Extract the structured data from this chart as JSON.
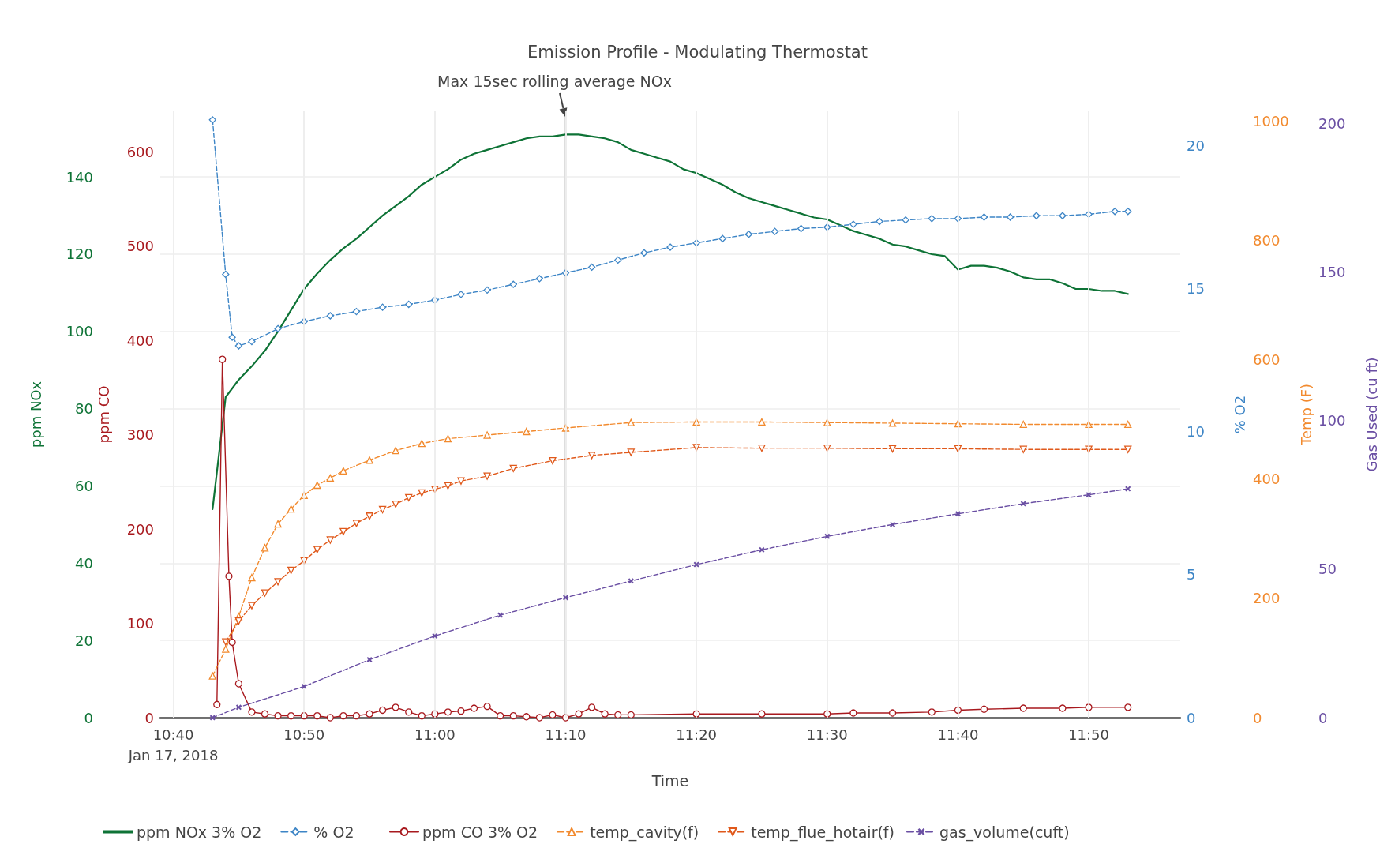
{
  "chart_data": [
    {
      "type": "line",
      "title": "Emission Profile - Modulating Thermostat",
      "xlabel": "Time",
      "ylabel": "ppm NOx",
      "y2label": "% O2",
      "xlim": [
        "2018-01-17T10:39",
        "2018-01-17T11:57"
      ],
      "xticks": [
        {
          "value": "2018-01-17T10:40",
          "label": "10:40\nJan 17, 2018"
        },
        {
          "value": "2018-01-17T10:50",
          "label": "10:50"
        },
        {
          "value": "2018-01-17T11:00",
          "label": "11:00"
        },
        {
          "value": "2018-01-17T11:10",
          "label": "11:10"
        },
        {
          "value": "2018-01-17T11:20",
          "label": "11:20"
        },
        {
          "value": "2018-01-17T11:30",
          "label": "11:30"
        },
        {
          "value": "2018-01-17T11:40",
          "label": "11:40"
        },
        {
          "value": "2018-01-17T11:50",
          "label": "11:50"
        }
      ],
      "ylim": [
        0,
        157
      ],
      "yticks": [
        0,
        20,
        40,
        60,
        80,
        100,
        120,
        140
      ],
      "y2lim": [
        0,
        21.2
      ],
      "y2ticks": [
        0,
        5,
        10,
        15,
        20
      ],
      "grid": true,
      "legend": "bottom",
      "ref_lines": [
        {
          "axis": "x",
          "value": "2018-01-17T11:10",
          "label": null,
          "color": "#dddddd"
        }
      ],
      "annotations": [
        {
          "text": "Max 15sec rolling average NOx",
          "x": "2018-01-17T11:10",
          "y": 151
        }
      ],
      "series": [
        {
          "name": "ppm NOx 3% O2",
          "color": "#0e7336",
          "marker": "none",
          "line_style": "solid",
          "x": [
            "2018-01-17T10:43",
            "2018-01-17T10:44",
            "2018-01-17T10:45",
            "2018-01-17T10:46",
            "2018-01-17T10:47",
            "2018-01-17T10:48",
            "2018-01-17T10:49",
            "2018-01-17T10:50",
            "2018-01-17T10:51",
            "2018-01-17T10:52",
            "2018-01-17T10:53",
            "2018-01-17T10:54",
            "2018-01-17T10:55",
            "2018-01-17T10:56",
            "2018-01-17T10:57",
            "2018-01-17T10:58",
            "2018-01-17T10:59",
            "2018-01-17T11:00",
            "2018-01-17T11:01",
            "2018-01-17T11:02",
            "2018-01-17T11:03",
            "2018-01-17T11:04",
            "2018-01-17T11:05",
            "2018-01-17T11:06",
            "2018-01-17T11:07",
            "2018-01-17T11:08",
            "2018-01-17T11:09",
            "2018-01-17T11:10",
            "2018-01-17T11:11",
            "2018-01-17T11:12",
            "2018-01-17T11:13",
            "2018-01-17T11:14",
            "2018-01-17T11:15",
            "2018-01-17T11:16",
            "2018-01-17T11:17",
            "2018-01-17T11:18",
            "2018-01-17T11:19",
            "2018-01-17T11:20",
            "2018-01-17T11:21",
            "2018-01-17T11:22",
            "2018-01-17T11:23",
            "2018-01-17T11:24",
            "2018-01-17T11:25",
            "2018-01-17T11:26",
            "2018-01-17T11:27",
            "2018-01-17T11:28",
            "2018-01-17T11:29",
            "2018-01-17T11:30",
            "2018-01-17T11:31",
            "2018-01-17T11:32",
            "2018-01-17T11:33",
            "2018-01-17T11:34",
            "2018-01-17T11:35",
            "2018-01-17T11:36",
            "2018-01-17T11:37",
            "2018-01-17T11:38",
            "2018-01-17T11:39",
            "2018-01-17T11:40",
            "2018-01-17T11:41",
            "2018-01-17T11:42",
            "2018-01-17T11:43",
            "2018-01-17T11:44",
            "2018-01-17T11:45",
            "2018-01-17T11:46",
            "2018-01-17T11:47",
            "2018-01-17T11:48",
            "2018-01-17T11:49",
            "2018-01-17T11:50",
            "2018-01-17T11:51",
            "2018-01-17T11:52",
            "2018-01-17T11:53"
          ],
          "values": [
            54,
            83,
            87.5,
            91,
            95,
            100,
            105.5,
            111,
            115,
            118.5,
            121.5,
            124,
            127,
            130,
            132.5,
            135,
            138,
            140,
            142,
            144.5,
            146,
            147,
            148,
            149,
            150,
            150.5,
            150.5,
            151,
            151,
            150.5,
            150,
            149,
            147,
            146,
            145,
            144,
            142,
            141,
            139.5,
            138,
            136,
            134.5,
            133.5,
            132.5,
            131.5,
            130.5,
            129.5,
            129,
            127.5,
            126,
            125,
            124,
            122.5,
            122,
            121,
            120,
            119.5,
            116,
            117,
            117,
            116.5,
            115.5,
            114,
            113.5,
            113.5,
            112.5,
            111,
            111,
            110.5,
            110.5,
            109.7
          ]
        },
        {
          "name": "% O2",
          "color": "#3d85c6",
          "axis": "y2",
          "marker": "diamond",
          "line_style": "dashed",
          "x": [
            "2018-01-17T10:43",
            "2018-01-17T10:44",
            "2018-01-17T10:44:30",
            "2018-01-17T10:45",
            "2018-01-17T10:46",
            "2018-01-17T10:48",
            "2018-01-17T10:50",
            "2018-01-17T10:52",
            "2018-01-17T10:54",
            "2018-01-17T10:56",
            "2018-01-17T10:58",
            "2018-01-17T11:00",
            "2018-01-17T11:02",
            "2018-01-17T11:04",
            "2018-01-17T11:06",
            "2018-01-17T11:08",
            "2018-01-17T11:10",
            "2018-01-17T11:12",
            "2018-01-17T11:14",
            "2018-01-17T11:16",
            "2018-01-17T11:18",
            "2018-01-17T11:20",
            "2018-01-17T11:22",
            "2018-01-17T11:24",
            "2018-01-17T11:26",
            "2018-01-17T11:28",
            "2018-01-17T11:30",
            "2018-01-17T11:32",
            "2018-01-17T11:34",
            "2018-01-17T11:36",
            "2018-01-17T11:38",
            "2018-01-17T11:40",
            "2018-01-17T11:42",
            "2018-01-17T11:44",
            "2018-01-17T11:46",
            "2018-01-17T11:48",
            "2018-01-17T11:50",
            "2018-01-17T11:52",
            "2018-01-17T11:53"
          ],
          "values": [
            20.9,
            15.5,
            13.3,
            13,
            13.15,
            13.6,
            13.85,
            14.05,
            14.2,
            14.35,
            14.45,
            14.6,
            14.8,
            14.95,
            15.15,
            15.35,
            15.55,
            15.75,
            16,
            16.25,
            16.45,
            16.6,
            16.75,
            16.9,
            17,
            17.1,
            17.15,
            17.25,
            17.35,
            17.4,
            17.45,
            17.45,
            17.5,
            17.5,
            17.55,
            17.55,
            17.6,
            17.7,
            17.7
          ]
        }
      ]
    },
    {
      "type": "line",
      "ylabel": "ppm CO",
      "y2label": "Temp (F)",
      "tick_labels": "y",
      "legend": "bottom",
      "grid": "x",
      "xlim": [
        "2018-01-17T10:39",
        "2018-01-17T11:57"
      ],
      "xticks": [
        "2018-01-17T10:40",
        "2018-01-17T10:50",
        "2018-01-17T11:00",
        "2018-01-17T11:10",
        "2018-01-17T11:20",
        "2018-01-17T11:30",
        "2018-01-17T11:40",
        "2018-01-17T11:50"
      ],
      "ylim": [
        0,
        643
      ],
      "yticks": [
        0,
        100,
        200,
        300,
        400,
        500,
        600
      ],
      "y2lim": [
        0,
        1017
      ],
      "y2ticks": [
        0,
        200,
        400,
        600,
        800,
        1000
      ],
      "series": [
        {
          "name": "ppm CO 3% O2",
          "color": "#a8191e",
          "marker": "circle",
          "line_style": "solid",
          "x": [
            "2018-01-17T10:43:20",
            "2018-01-17T10:43:45",
            "2018-01-17T10:44:15",
            "2018-01-17T10:44:30",
            "2018-01-17T10:45",
            "2018-01-17T10:46",
            "2018-01-17T10:47",
            "2018-01-17T10:48",
            "2018-01-17T10:49",
            "2018-01-17T10:50",
            "2018-01-17T10:51",
            "2018-01-17T10:52",
            "2018-01-17T10:53",
            "2018-01-17T10:54",
            "2018-01-17T10:55",
            "2018-01-17T10:56",
            "2018-01-17T10:57",
            "2018-01-17T10:58",
            "2018-01-17T10:59",
            "2018-01-17T11:00",
            "2018-01-17T11:01",
            "2018-01-17T11:02",
            "2018-01-17T11:03",
            "2018-01-17T11:04",
            "2018-01-17T11:05",
            "2018-01-17T11:06",
            "2018-01-17T11:07",
            "2018-01-17T11:08",
            "2018-01-17T11:09",
            "2018-01-17T11:10",
            "2018-01-17T11:11",
            "2018-01-17T11:12",
            "2018-01-17T11:13",
            "2018-01-17T11:14",
            "2018-01-17T11:15",
            "2018-01-17T11:20",
            "2018-01-17T11:25",
            "2018-01-17T11:30",
            "2018-01-17T11:32",
            "2018-01-17T11:35",
            "2018-01-17T11:38",
            "2018-01-17T11:40",
            "2018-01-17T11:42",
            "2018-01-17T11:45",
            "2018-01-17T11:48",
            "2018-01-17T11:50",
            "2018-01-17T11:53"
          ],
          "values": [
            14,
            380,
            150,
            80,
            36,
            6,
            4,
            2,
            2,
            2,
            2,
            0,
            2,
            2,
            4,
            8,
            11,
            6,
            2,
            4,
            6,
            7,
            10,
            12,
            2,
            2,
            1,
            0,
            3,
            0,
            4,
            11,
            4,
            3,
            3,
            4,
            4,
            4,
            5,
            5,
            6,
            8,
            9,
            10,
            10,
            11,
            11
          ]
        },
        {
          "name": "temp_cavity(f)",
          "color": "#f28a2e",
          "axis": "y2",
          "marker": "triangle",
          "line_style": "dashed",
          "x": [
            "2018-01-17T10:43",
            "2018-01-17T10:44",
            "2018-01-17T10:45",
            "2018-01-17T10:46",
            "2018-01-17T10:47",
            "2018-01-17T10:48",
            "2018-01-17T10:49",
            "2018-01-17T10:50",
            "2018-01-17T10:51",
            "2018-01-17T10:52",
            "2018-01-17T10:53",
            "2018-01-17T10:55",
            "2018-01-17T10:57",
            "2018-01-17T10:59",
            "2018-01-17T11:01",
            "2018-01-17T11:04",
            "2018-01-17T11:07",
            "2018-01-17T11:10",
            "2018-01-17T11:15",
            "2018-01-17T11:20",
            "2018-01-17T11:25",
            "2018-01-17T11:30",
            "2018-01-17T11:35",
            "2018-01-17T11:40",
            "2018-01-17T11:45",
            "2018-01-17T11:50",
            "2018-01-17T11:53"
          ],
          "values": [
            70,
            115,
            170,
            235,
            285,
            325,
            350,
            373,
            390,
            402,
            414,
            432,
            448,
            460,
            468,
            474,
            480,
            486,
            495,
            496,
            496,
            495,
            494,
            493,
            492,
            492,
            492
          ]
        },
        {
          "name": "temp_flue_hotair(f)",
          "color": "#e0591b",
          "axis": "y2",
          "marker": "triangle-down",
          "line_style": "dashed",
          "x": [
            "2018-01-17T10:44",
            "2018-01-17T10:45",
            "2018-01-17T10:46",
            "2018-01-17T10:47",
            "2018-01-17T10:48",
            "2018-01-17T10:49",
            "2018-01-17T10:50",
            "2018-01-17T10:51",
            "2018-01-17T10:52",
            "2018-01-17T10:53",
            "2018-01-17T10:54",
            "2018-01-17T10:55",
            "2018-01-17T10:56",
            "2018-01-17T10:57",
            "2018-01-17T10:58",
            "2018-01-17T10:59",
            "2018-01-17T11:00",
            "2018-01-17T11:01",
            "2018-01-17T11:02",
            "2018-01-17T11:04",
            "2018-01-17T11:06",
            "2018-01-17T11:09",
            "2018-01-17T11:12",
            "2018-01-17T11:15",
            "2018-01-17T11:20",
            "2018-01-17T11:25",
            "2018-01-17T11:30",
            "2018-01-17T11:35",
            "2018-01-17T11:40",
            "2018-01-17T11:45",
            "2018-01-17T11:50",
            "2018-01-17T11:53"
          ],
          "values": [
            127,
            162,
            188,
            209,
            228,
            247,
            263,
            282,
            298,
            312,
            326,
            338,
            349,
            358,
            369,
            377,
            383,
            389,
            397,
            405,
            418,
            431,
            440,
            445,
            453,
            452,
            452,
            451,
            451,
            450,
            450,
            450
          ]
        }
      ]
    },
    {
      "type": "line",
      "y2label": "Gas Used (cu ft)",
      "tick_labels": "y",
      "legend": "bottom",
      "grid": "x",
      "xlim": [
        "2018-01-17T10:39",
        "2018-01-17T11:57"
      ],
      "xticks": [
        "2018-01-17T10:40",
        "2018-01-17T10:50",
        "2018-01-17T11:00",
        "2018-01-17T11:10",
        "2018-01-17T11:20",
        "2018-01-17T11:30",
        "2018-01-17T11:40",
        "2018-01-17T11:50"
      ],
      "y2lim": [
        0,
        204
      ],
      "y2ticks": [
        0,
        50,
        100,
        150,
        200
      ],
      "series": [
        {
          "name": "gas_volume(cuft)",
          "color": "#6a4fa3",
          "axis": "y2",
          "marker": "cross",
          "line_style": "dashed",
          "x": [
            "2018-01-17T10:43",
            "2018-01-17T10:45",
            "2018-01-17T10:50",
            "2018-01-17T10:55",
            "2018-01-17T11:00",
            "2018-01-17T11:05",
            "2018-01-17T11:10",
            "2018-01-17T11:15",
            "2018-01-17T11:20",
            "2018-01-17T11:25",
            "2018-01-17T11:30",
            "2018-01-17T11:35",
            "2018-01-17T11:40",
            "2018-01-17T11:45",
            "2018-01-17T11:50",
            "2018-01-17T11:53"
          ],
          "values": [
            0,
            3.5,
            10.5,
            19.5,
            27.5,
            34.5,
            40.4,
            46,
            51.5,
            56.5,
            61,
            65,
            68.6,
            72,
            75,
            77
          ]
        }
      ]
    }
  ]
}
